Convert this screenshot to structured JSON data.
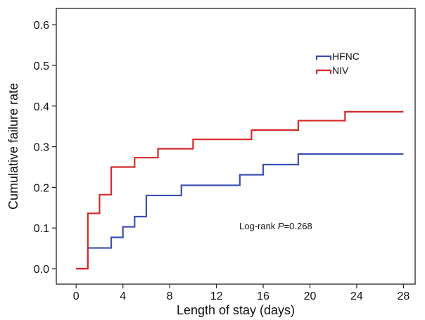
{
  "chart_data": {
    "type": "line",
    "step": true,
    "xlabel": "Length of stay (days)",
    "ylabel": "Cumulative failure rate",
    "xlim": [
      -1.7,
      29
    ],
    "ylim": [
      -0.038,
      0.64
    ],
    "xticks": [
      0,
      4,
      8,
      12,
      16,
      20,
      24,
      28
    ],
    "yticks": [
      0.0,
      0.1,
      0.2,
      0.3,
      0.4,
      0.5,
      0.6
    ],
    "ytick_labels": [
      "0.0",
      "0.1",
      "0.2",
      "0.3",
      "0.4",
      "0.5",
      "0.6"
    ],
    "grid": false,
    "legend_placement": "top-right",
    "annotation": {
      "prefix": "Log-rank ",
      "italic": "P",
      "suffix": "=0.268"
    },
    "series": [
      {
        "name": "HFNC",
        "color": "#3b4fb5",
        "points": [
          [
            0,
            0
          ],
          [
            1,
            0.051
          ],
          [
            3,
            0.077
          ],
          [
            4,
            0.103
          ],
          [
            5,
            0.128
          ],
          [
            6,
            0.18
          ],
          [
            9,
            0.205
          ],
          [
            14,
            0.231
          ],
          [
            16,
            0.256
          ],
          [
            19,
            0.282
          ],
          [
            28,
            0.282
          ]
        ]
      },
      {
        "name": "NIV",
        "color": "#d42a2a",
        "points": [
          [
            0,
            0
          ],
          [
            1,
            0.136
          ],
          [
            2,
            0.182
          ],
          [
            3,
            0.25
          ],
          [
            5,
            0.273
          ],
          [
            7,
            0.295
          ],
          [
            10,
            0.318
          ],
          [
            15,
            0.341
          ],
          [
            19,
            0.364
          ],
          [
            23,
            0.386
          ],
          [
            28,
            0.386
          ]
        ]
      }
    ]
  }
}
